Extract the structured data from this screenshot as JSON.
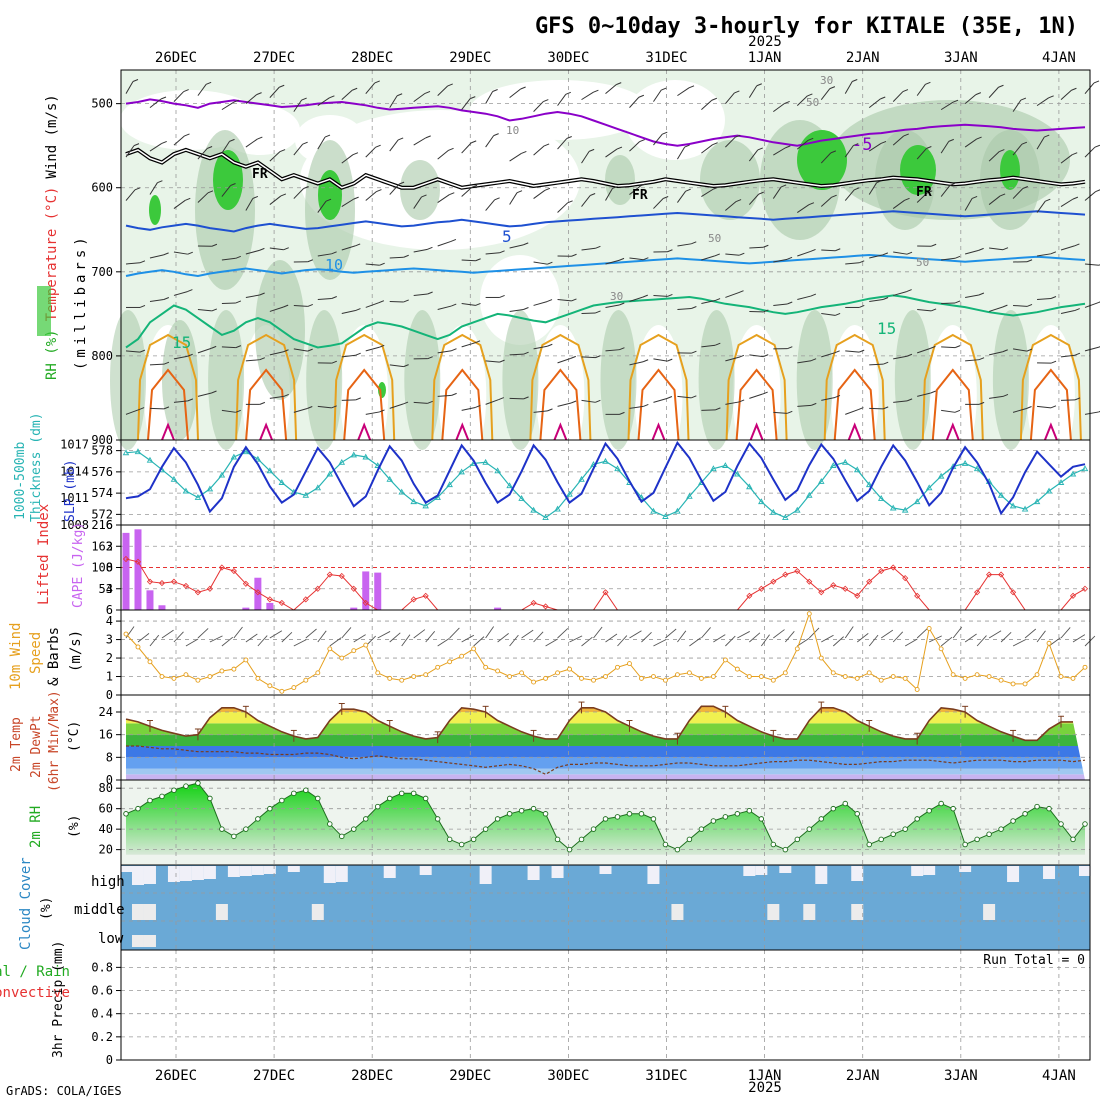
{
  "title": "GFS 0~10day 3-hourly for KITALE (35E, 1N)",
  "footer": "GrADS: COLA/IGES",
  "year_label": "2025",
  "dates": [
    "26DEC",
    "27DEC",
    "28DEC",
    "29DEC",
    "30DEC",
    "31DEC",
    "1JAN",
    "2JAN",
    "3JAN",
    "4JAN"
  ],
  "colors": {
    "rh_green": "#3cc93c",
    "rh_light": "#e8f4e8",
    "rh_mid": "#a8c8a8",
    "temp_purple": "#8a00c8",
    "temp_blue": "#1e50d0",
    "temp_lightblue": "#1e90e6",
    "temp_teal": "#14b478",
    "temp_orange": "#e6a01e",
    "temp_darkorange": "#e66414",
    "temp_magenta": "#c80078",
    "thickness": "#28b4b4",
    "slp": "#1e32c8",
    "cape_bar": "#c864f0",
    "lifted": "#e63232",
    "wind10": "#e6a01e",
    "cloud_blue": "#6aa9d6",
    "cloud_white": "#f0f0f8"
  },
  "chart_data": [
    {
      "type": "contour",
      "panel": "upper-air",
      "ylabel_parts": [
        "RH (%)",
        "Temperature (°C)",
        "Wind (m/s)"
      ],
      "ylabel_unit": "(millibars)",
      "yticks": [
        500,
        600,
        700,
        800,
        900
      ],
      "ylim": [
        460,
        900
      ],
      "contour_labels": {
        "fr": "FR",
        "t_minus5": "-5",
        "t5": "5",
        "t10": "10",
        "t15_a": "15",
        "t15_b": "15",
        "rh10": "10",
        "rh30_a": "30",
        "rh30_b": "30",
        "rh50_a": "50",
        "rh50_b": "50",
        "rh50_c": "50"
      },
      "freezing_level_mb": [
        560,
        555,
        565,
        570,
        560,
        555,
        560,
        565,
        560,
        570,
        575,
        570,
        580,
        590,
        585,
        590,
        595,
        590,
        600,
        595,
        585,
        590,
        595,
        600,
        600,
        595,
        590,
        595,
        600,
        598,
        596,
        594,
        592,
        595,
        598,
        596,
        594,
        592,
        590,
        592,
        595,
        598,
        597,
        595,
        593,
        590,
        592,
        594,
        596,
        598,
        597,
        595,
        593,
        591,
        590,
        592,
        594,
        596,
        598,
        597,
        595,
        593,
        591,
        590,
        588,
        589,
        590,
        592,
        594,
        596,
        595,
        593,
        591,
        590,
        588,
        590,
        592,
        594,
        596,
        595,
        593
      ],
      "minus5_mb": [
        500,
        498,
        495,
        497,
        500,
        502,
        505,
        500,
        498,
        496,
        498,
        500,
        502,
        504,
        503,
        502,
        500,
        499,
        498,
        500,
        502,
        505,
        507,
        506,
        505,
        504,
        503,
        505,
        508,
        510,
        512,
        515,
        520,
        518,
        515,
        512,
        510,
        512,
        515,
        520,
        525,
        530,
        535,
        540,
        545,
        548,
        550,
        548,
        545,
        542,
        540,
        538,
        540,
        543,
        546,
        548,
        550,
        547,
        544,
        542,
        540,
        538,
        536,
        535,
        533,
        531,
        530,
        528,
        527,
        526,
        525,
        526,
        527,
        528,
        530,
        531,
        532,
        531,
        530,
        529,
        528
      ],
      "t5_mb": [
        645,
        648,
        650,
        647,
        645,
        643,
        645,
        648,
        650,
        652,
        648,
        645,
        643,
        645,
        647,
        649,
        648,
        646,
        644,
        642,
        640,
        642,
        644,
        646,
        645,
        643,
        641,
        640,
        638,
        640,
        642,
        644,
        646,
        645,
        643,
        641,
        640,
        639,
        638,
        637,
        636,
        635,
        634,
        633,
        632,
        631,
        630,
        631,
        632,
        633,
        634,
        635,
        636,
        637,
        638,
        637,
        636,
        635,
        634,
        633,
        632,
        631,
        630,
        629,
        628,
        629,
        630,
        631,
        632,
        633,
        634,
        633,
        632,
        631,
        630,
        629,
        628,
        629,
        630,
        631,
        632
      ],
      "t10_mb": [
        705,
        702,
        700,
        698,
        700,
        703,
        705,
        702,
        700,
        698,
        696,
        698,
        700,
        702,
        700,
        698,
        697,
        698,
        700,
        701,
        700,
        699,
        698,
        697,
        696,
        697,
        698,
        699,
        700,
        701,
        700,
        699,
        698,
        697,
        696,
        695,
        694,
        693,
        692,
        691,
        690,
        689,
        688,
        687,
        686,
        685,
        684,
        685,
        686,
        687,
        688,
        689,
        690,
        689,
        688,
        687,
        686,
        685,
        684,
        683,
        682,
        681,
        680,
        681,
        682,
        683,
        684,
        685,
        686,
        687,
        688,
        687,
        686,
        685,
        684,
        683,
        682,
        683,
        684,
        685,
        686
      ],
      "t15_mb": [
        790,
        780,
        760,
        750,
        740,
        745,
        755,
        765,
        775,
        770,
        760,
        755,
        760,
        770,
        780,
        785,
        790,
        788,
        785,
        775,
        765,
        760,
        762,
        765,
        770,
        775,
        780,
        775,
        765,
        760,
        755,
        750,
        752,
        755,
        758,
        760,
        755,
        750,
        745,
        740,
        738,
        736,
        735,
        734,
        733,
        732,
        731,
        730,
        732,
        735,
        738,
        740,
        742,
        745,
        748,
        750,
        748,
        745,
        742,
        740,
        738,
        735,
        732,
        730,
        728,
        730,
        733,
        736,
        738,
        740,
        742,
        745,
        748,
        750,
        752,
        750,
        748,
        745,
        742,
        740,
        738
      ],
      "wind_barbs_mb": [
        500,
        560,
        620,
        680,
        740,
        800,
        860
      ]
    },
    {
      "type": "line",
      "panel": "thickness-slp",
      "ylabel_parts": [
        "1000-500mb",
        "Thickness (dm)",
        "SLP (mb)"
      ],
      "left_ticks": [
        572,
        574,
        576,
        578
      ],
      "left_lim": [
        571,
        579
      ],
      "right_ticks": [
        1008,
        1011,
        1014,
        1017
      ],
      "right_lim": [
        1008,
        1017.5
      ],
      "thickness_dm": [
        577.8,
        577.9,
        577.1,
        576.2,
        575.3,
        574.2,
        573.6,
        574.4,
        575.7,
        577.4,
        577.9,
        577.2,
        576.1,
        575.0,
        574.1,
        573.8,
        574.5,
        575.8,
        576.9,
        577.6,
        577.4,
        576.6,
        575.3,
        574.1,
        573.2,
        572.8,
        573.6,
        574.8,
        576.0,
        576.8,
        576.9,
        576.1,
        574.7,
        573.5,
        572.4,
        571.7,
        572.5,
        573.9,
        575.3,
        576.7,
        577.0,
        576.3,
        575.0,
        573.6,
        572.3,
        571.8,
        572.3,
        573.7,
        575.0,
        576.3,
        576.6,
        575.8,
        574.6,
        573.2,
        572.2,
        571.7,
        572.4,
        573.8,
        575.1,
        576.6,
        576.9,
        576.2,
        574.8,
        573.5,
        572.6,
        572.4,
        573.2,
        574.5,
        575.6,
        576.5,
        576.8,
        576.3,
        575.1,
        573.8,
        572.8,
        572.5,
        573.2,
        574.2,
        575.0,
        575.8,
        576.3
      ],
      "slp_mb": [
        1011.0,
        1011.2,
        1012.0,
        1014.5,
        1016.6,
        1015.0,
        1012.5,
        1009.5,
        1011.0,
        1014.5,
        1016.7,
        1014.8,
        1012.3,
        1010.5,
        1011.4,
        1014.0,
        1016.6,
        1015.0,
        1012.5,
        1010.1,
        1011.2,
        1014.1,
        1016.8,
        1015.2,
        1012.6,
        1010.5,
        1011.3,
        1014.1,
        1016.9,
        1015.2,
        1012.7,
        1010.5,
        1011.4,
        1014.0,
        1016.9,
        1015.3,
        1012.8,
        1010.5,
        1011.5,
        1014.3,
        1017.1,
        1015.4,
        1012.9,
        1010.6,
        1011.6,
        1014.4,
        1017.2,
        1015.5,
        1013.0,
        1010.7,
        1011.7,
        1014.6,
        1017.1,
        1015.5,
        1013.1,
        1010.8,
        1011.9,
        1014.7,
        1017.0,
        1015.4,
        1013.0,
        1010.7,
        1011.8,
        1014.5,
        1016.9,
        1015.2,
        1012.8,
        1010.2,
        1011.6,
        1014.4,
        1016.7,
        1015.0,
        1012.6,
        1009.3,
        1011.1,
        1013.9,
        1016.2,
        1014.8,
        1013.4,
        1014.5,
        1014.8
      ]
    },
    {
      "type": "bar+line",
      "panel": "cape-lifted",
      "ylabel_parts": [
        "Lifted Index",
        "CAPE (J/kg)"
      ],
      "left_ticks": [
        -6,
        -3,
        0,
        3,
        6
      ],
      "right_ticks": [
        54,
        108,
        162,
        216
      ],
      "cape_jkg": [
        196,
        205,
        50,
        12,
        0,
        0,
        0,
        0,
        0,
        0,
        6,
        82,
        18,
        0,
        0,
        0,
        0,
        0,
        0,
        6,
        98,
        95,
        0,
        0,
        0,
        0,
        0,
        0,
        0,
        0,
        0,
        6,
        0,
        0,
        0,
        0,
        0,
        0,
        0,
        0,
        0,
        0,
        0,
        0,
        0,
        0,
        0,
        0,
        0,
        0,
        0,
        0,
        0,
        0,
        0,
        0,
        0,
        0,
        0,
        0,
        0,
        0,
        0,
        0,
        0,
        0,
        0,
        0,
        0,
        0,
        0,
        0,
        0,
        0,
        0,
        0,
        0,
        0,
        0,
        0,
        0
      ],
      "lifted_index": [
        -1.2,
        -0.8,
        2.0,
        2.2,
        2.0,
        2.6,
        3.5,
        3.0,
        0.0,
        0.5,
        2.3,
        3.5,
        4.5,
        5.0,
        6.0,
        4.5,
        3.0,
        1.0,
        1.2,
        3.0,
        5.0,
        6.0,
        6.0,
        6.0,
        4.5,
        4.0,
        6.0,
        6.0,
        6.0,
        6.0,
        6.0,
        6.0,
        6.0,
        6.0,
        5.0,
        5.5,
        6.0,
        6.0,
        6.0,
        6.0,
        3.5,
        6.0,
        6.0,
        6.0,
        6.0,
        6.0,
        6.0,
        6.0,
        6.0,
        6.0,
        6.0,
        6.0,
        4.0,
        3.0,
        2.0,
        1.0,
        0.5,
        2.0,
        3.5,
        2.5,
        3.0,
        4.0,
        2.0,
        0.5,
        0.0,
        1.5,
        4.0,
        6.0,
        6.0,
        6.0,
        6.0,
        3.5,
        1.0,
        1.0,
        3.5,
        6.0,
        6.0,
        6.0,
        6.0,
        4.0,
        3.0
      ],
      "zero_line": 0
    },
    {
      "type": "line+barbs",
      "panel": "wind10m",
      "ylabel_parts": [
        "10m Wind",
        "Speed",
        "& Barbs",
        "(m/s)"
      ],
      "yticks": [
        0,
        1,
        2,
        3,
        4
      ],
      "ylim": [
        0,
        4.6
      ],
      "speed_ms": [
        3.3,
        2.6,
        1.8,
        1.0,
        0.9,
        1.1,
        0.8,
        1.0,
        1.3,
        1.4,
        1.9,
        0.9,
        0.5,
        0.2,
        0.4,
        0.8,
        1.2,
        2.5,
        2.0,
        2.4,
        2.7,
        1.2,
        0.9,
        0.8,
        1.0,
        1.1,
        1.5,
        1.8,
        2.1,
        2.5,
        1.5,
        1.3,
        1.0,
        1.2,
        0.7,
        0.9,
        1.2,
        1.4,
        0.9,
        0.8,
        1.0,
        1.5,
        1.7,
        0.9,
        1.0,
        0.8,
        1.1,
        1.2,
        0.9,
        1.0,
        1.9,
        1.4,
        1.0,
        1.0,
        0.8,
        1.2,
        2.5,
        4.4,
        2.0,
        1.2,
        1.0,
        0.9,
        1.2,
        0.8,
        1.0,
        0.9,
        0.3,
        3.6,
        2.5,
        1.1,
        0.9,
        1.1,
        1.0,
        0.8,
        0.6,
        0.6,
        1.1,
        2.8,
        1.0,
        0.9,
        1.5
      ]
    },
    {
      "type": "area+line",
      "panel": "temp2m",
      "ylabel_parts": [
        "2m Temp",
        "2m DewPt",
        "(6hr Min/Max)",
        "(°C)"
      ],
      "yticks": [
        0,
        8,
        16,
        24
      ],
      "ylim": [
        0,
        30
      ],
      "temp_c": [
        21.5,
        20.5,
        19,
        17.5,
        16.5,
        15.5,
        16,
        22,
        25.5,
        25.5,
        24,
        21,
        19,
        17,
        15.5,
        14.5,
        15,
        21,
        25,
        25,
        24,
        21,
        19,
        17,
        15.5,
        14.5,
        15,
        21,
        25.5,
        25,
        24,
        21,
        19,
        17,
        15.5,
        14.5,
        14.5,
        21,
        25.5,
        25.5,
        24,
        21,
        19,
        17,
        15.5,
        14.5,
        14.5,
        21,
        26,
        26,
        24,
        21,
        19,
        17,
        15.5,
        14.5,
        14.5,
        21,
        25.5,
        25.5,
        24,
        21,
        19,
        17,
        15.5,
        14.5,
        14.5,
        21,
        25.5,
        25,
        24,
        21,
        19,
        17,
        15.5,
        14,
        14,
        18,
        20.5,
        20.5
      ],
      "dewpt_c": [
        12,
        12,
        11.5,
        11,
        11,
        10.5,
        10,
        10,
        10,
        10,
        9.5,
        9.5,
        9,
        9,
        9,
        9.5,
        9.5,
        9,
        8,
        7.5,
        8,
        8.5,
        8,
        7.5,
        7.5,
        7,
        6.5,
        6,
        5.5,
        5,
        4.5,
        5,
        5.5,
        5,
        4,
        2,
        4.5,
        5.5,
        5.5,
        6,
        6,
        5.5,
        5,
        5,
        5,
        5.5,
        6,
        6,
        5.5,
        5,
        5,
        5,
        5.5,
        6,
        6.5,
        6.5,
        7,
        7,
        6.5,
        6,
        5.5,
        5.5,
        6,
        6.5,
        6.5,
        7,
        7,
        7,
        6.5,
        6,
        6.5,
        7,
        7,
        7,
        6.5,
        6.5,
        7,
        7,
        7,
        6.5,
        7
      ]
    },
    {
      "type": "area",
      "panel": "rh2m",
      "ylabel_parts": [
        "2m RH",
        "(%)"
      ],
      "yticks": [
        20,
        40,
        60,
        80
      ],
      "ylim": [
        5,
        88
      ],
      "rh_pct": [
        55,
        60,
        68,
        72,
        78,
        82,
        85,
        70,
        40,
        33,
        40,
        50,
        60,
        68,
        75,
        78,
        70,
        45,
        33,
        40,
        50,
        62,
        70,
        75,
        75,
        70,
        50,
        30,
        25,
        30,
        40,
        50,
        55,
        58,
        60,
        55,
        30,
        20,
        30,
        40,
        50,
        52,
        55,
        55,
        50,
        25,
        20,
        30,
        40,
        48,
        52,
        55,
        58,
        50,
        25,
        20,
        30,
        40,
        50,
        60,
        65,
        55,
        25,
        30,
        35,
        40,
        50,
        58,
        65,
        60,
        25,
        30,
        35,
        40,
        48,
        55,
        62,
        60,
        45,
        30,
        45
      ]
    },
    {
      "type": "heatmap",
      "panel": "cloud",
      "ylabel_parts": [
        "Cloud Cover",
        "(%)"
      ],
      "rows": [
        "high",
        "middle",
        "low"
      ]
    },
    {
      "type": "bar",
      "panel": "precip",
      "ylabel_parts": [
        "Total / Rain",
        "Convective",
        "3hr Precip (mm)"
      ],
      "yticks": [
        0,
        0.2,
        0.4,
        0.6,
        0.8
      ],
      "ylim": [
        0,
        0.95
      ],
      "run_total": "Run Total = 0"
    }
  ]
}
